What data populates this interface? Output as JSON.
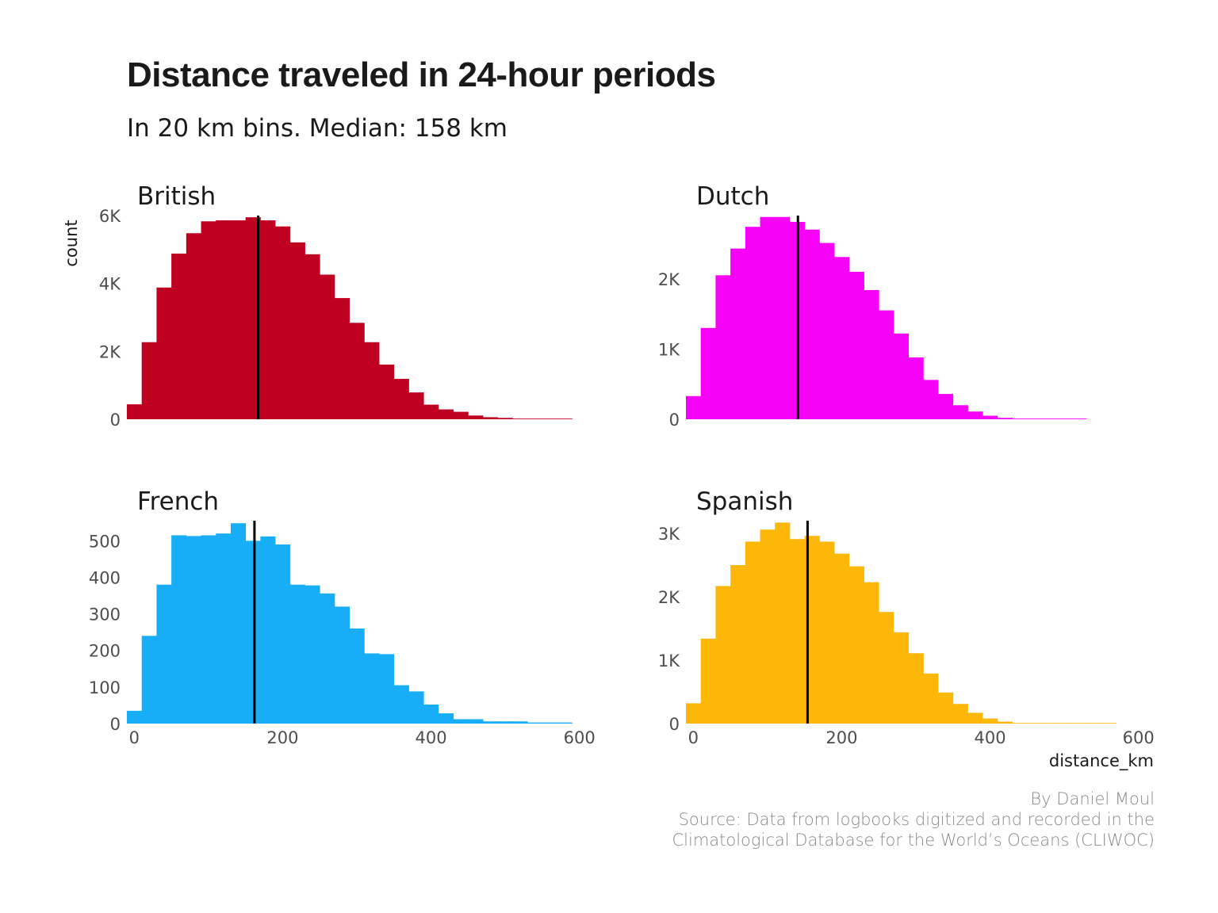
{
  "title": "Distance traveled in 24-hour periods",
  "subtitle": "In 20 km bins. Median: 158 km",
  "caption": {
    "author": "By Daniel Moul",
    "source_line1": "Source: Data from logbooks digitized and recorded in the",
    "source_line2": "Climatological Database for the World’s Oceans (CLIWOC)"
  },
  "chart_data": {
    "type": "bar",
    "xlabel": "distance_km",
    "ylabel": "count",
    "x_ticks": [
      0,
      200,
      400,
      600
    ],
    "x_tick_labels": [
      "0",
      "200",
      "400",
      "600"
    ],
    "bin_width_km": 20,
    "bin_edges_km": [
      -10,
      10,
      30,
      50,
      70,
      90,
      110,
      130,
      150,
      170,
      190,
      210,
      230,
      250,
      270,
      290,
      310,
      330,
      350,
      370,
      390,
      410,
      430,
      450,
      470,
      490,
      510,
      530,
      550,
      570,
      590,
      610
    ],
    "xlim": [
      -10,
      610
    ],
    "grid": false,
    "median_line_color": "#000000",
    "panels": [
      {
        "name": "British",
        "color": "#c00020",
        "ylim": [
          0,
          6000
        ],
        "y_ticks": [
          0,
          2000,
          4000,
          6000
        ],
        "y_tick_labels": [
          "0",
          "2K",
          "4K",
          "6K"
        ],
        "median_km": 167,
        "values": [
          440,
          2270,
          3880,
          4880,
          5480,
          5830,
          5860,
          5860,
          5950,
          5860,
          5680,
          5210,
          4860,
          4260,
          3570,
          2840,
          2270,
          1610,
          1190,
          790,
          430,
          290,
          220,
          110,
          60,
          40,
          20,
          20,
          20,
          20,
          0
        ]
      },
      {
        "name": "Dutch",
        "color": "#f700f7",
        "ylim": [
          0,
          2900
        ],
        "y_ticks": [
          0,
          1000,
          2000
        ],
        "y_tick_labels": [
          "0",
          "1K",
          "2K"
        ],
        "median_km": 141,
        "values": [
          330,
          1300,
          2050,
          2430,
          2740,
          2880,
          2880,
          2810,
          2700,
          2510,
          2310,
          2100,
          1840,
          1550,
          1220,
          880,
          560,
          360,
          200,
          110,
          50,
          20,
          10,
          10,
          10,
          10,
          10,
          0,
          0,
          0,
          0
        ]
      },
      {
        "name": "French",
        "color": "#17aef7",
        "ylim": [
          0,
          555
        ],
        "y_ticks": [
          0,
          100,
          200,
          300,
          400,
          500
        ],
        "y_tick_labels": [
          "0",
          "100",
          "200",
          "300",
          "400",
          "500"
        ],
        "median_km": 162,
        "values": [
          35,
          240,
          380,
          515,
          513,
          515,
          520,
          548,
          500,
          512,
          490,
          380,
          378,
          356,
          320,
          260,
          192,
          190,
          105,
          88,
          52,
          28,
          12,
          12,
          6,
          6,
          6,
          3,
          3,
          3,
          0
        ]
      },
      {
        "name": "Spanish",
        "color": "#fdb709",
        "ylim": [
          0,
          3200
        ],
        "y_ticks": [
          0,
          1000,
          2000,
          3000
        ],
        "y_tick_labels": [
          "0",
          "1K",
          "2K",
          "3K"
        ],
        "median_km": 154,
        "values": [
          320,
          1340,
          2170,
          2500,
          2870,
          3060,
          3170,
          2910,
          2960,
          2870,
          2680,
          2480,
          2230,
          1760,
          1440,
          1110,
          790,
          490,
          310,
          170,
          80,
          30,
          10,
          10,
          10,
          10,
          10,
          10,
          10,
          0,
          0
        ]
      }
    ]
  }
}
